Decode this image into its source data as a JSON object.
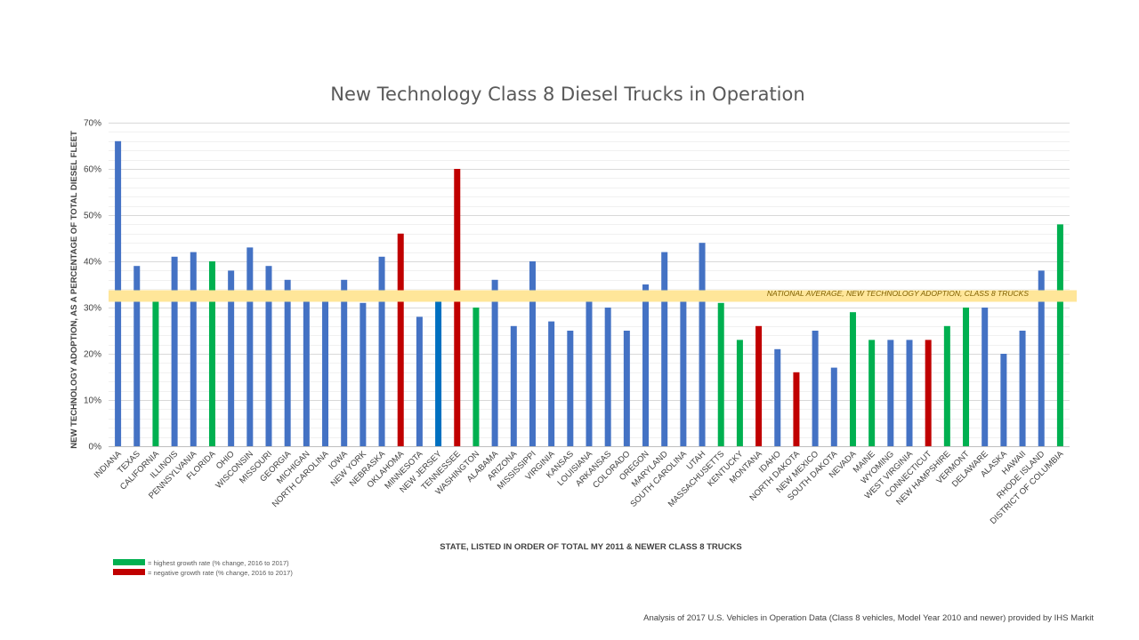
{
  "chart_data": {
    "type": "bar",
    "title": "New Technology Class 8 Diesel Trucks in Operation",
    "xlabel": "STATE, LISTED IN ORDER OF TOTAL MY 2011 & NEWER CLASS 8 TRUCKS",
    "ylabel": "NEW TECHNOLOGY ADOPTION, AS A PERCENTAGE OF TOTAL DIESEL FLEET",
    "ylim": [
      0,
      70
    ],
    "y_ticks": [
      "0%",
      "10%",
      "20%",
      "30%",
      "40%",
      "50%",
      "60%",
      "70%"
    ],
    "grid": true,
    "categories": [
      "INDIANA",
      "TEXAS",
      "CALIFORNIA",
      "ILLINOIS",
      "PENNSYLVANIA",
      "FLORIDA",
      "OHIO",
      "WISCONSIN",
      "MISSOURI",
      "GEORGIA",
      "MICHIGAN",
      "NORTH CAROLINA",
      "IOWA",
      "NEW YORK",
      "NEBRASKA",
      "OKLAHOMA",
      "MINNESOTA",
      "NEW JERSEY",
      "TENNESSEE",
      "WASHINGTON",
      "ALABAMA",
      "ARIZONA",
      "MISSISSIPPI",
      "VIRGINIA",
      "KANSAS",
      "LOUISIANA",
      "ARKANSAS",
      "COLORADO",
      "OREGON",
      "MARYLAND",
      "SOUTH CAROLINA",
      "UTAH",
      "MASSACHUSETTS",
      "KENTUCKY",
      "MONTANA",
      "IDAHO",
      "NORTH DAKOTA",
      "NEW MEXICO",
      "SOUTH DAKOTA",
      "NEVADA",
      "MAINE",
      "WYOMING",
      "WEST VIRGINIA",
      "CONNECTICUT",
      "NEW HAMPSHIRE",
      "VERMONT",
      "DELAWARE",
      "ALASKA",
      "HAWAII",
      "RHODE ISLAND",
      "DISTRICT OF COLUMBIA"
    ],
    "values": [
      66,
      39,
      32,
      41,
      42,
      40,
      38,
      43,
      39,
      36,
      32,
      32,
      36,
      31,
      41,
      46,
      28,
      32,
      60,
      30,
      36,
      26,
      40,
      27,
      25,
      32,
      30,
      25,
      35,
      42,
      32,
      44,
      31,
      23,
      26,
      21,
      16,
      25,
      17,
      29,
      23,
      23,
      23,
      23,
      26,
      30,
      30,
      20,
      25,
      38,
      48
    ],
    "bar_groups": [
      "normal",
      "normal",
      "growth",
      "normal",
      "normal",
      "growth",
      "normal",
      "normal",
      "normal",
      "normal",
      "normal",
      "normal",
      "normal",
      "normal",
      "normal",
      "negative",
      "normal",
      "highlight",
      "negative",
      "growth",
      "normal",
      "normal",
      "normal",
      "normal",
      "normal",
      "normal",
      "normal",
      "normal",
      "normal",
      "normal",
      "normal",
      "normal",
      "growth",
      "growth",
      "negative",
      "normal",
      "negative",
      "normal",
      "normal",
      "growth",
      "growth",
      "normal",
      "normal",
      "negative",
      "growth",
      "growth",
      "normal",
      "normal",
      "normal",
      "normal",
      "growth"
    ],
    "colors": {
      "normal": "#4472c4",
      "growth": "#00b050",
      "negative": "#c00000",
      "highlight": "#0070c0",
      "average_band": "#ffe699"
    },
    "national_average": {
      "value": 32.5,
      "label": "NATIONAL AVERAGE, NEW TECHNOLOGY ADOPTION, CLASS 8 TRUCKS"
    },
    "legend": [
      {
        "label": "= highest growth rate (% change, 2016 to 2017)",
        "color": "#00b050"
      },
      {
        "label": "= negative growth rate (% change, 2016 to 2017)",
        "color": "#c00000"
      }
    ]
  },
  "source_note": "Analysis of 2017 U.S. Vehicles in Operation Data (Class 8 vehicles, Model Year 2010 and newer) provided by IHS Markit"
}
